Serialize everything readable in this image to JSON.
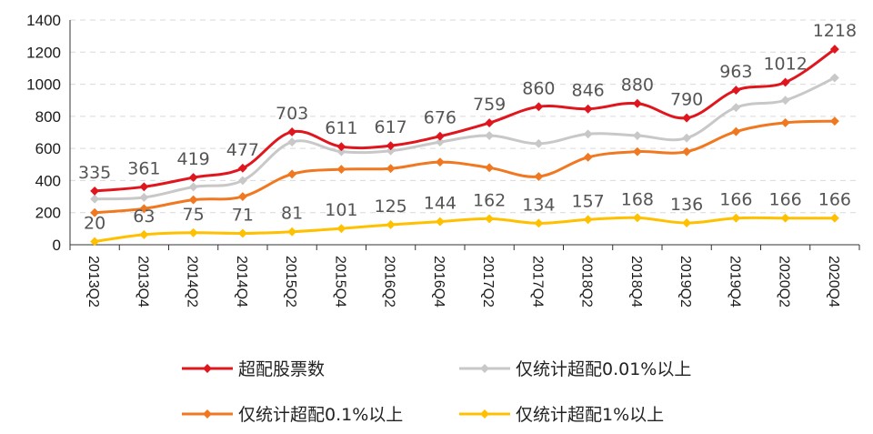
{
  "chart_data": {
    "type": "line",
    "categories": [
      "2013Q2",
      "2013Q4",
      "2014Q2",
      "2014Q4",
      "2015Q2",
      "2015Q4",
      "2016Q2",
      "2016Q4",
      "2017Q2",
      "2017Q4",
      "2018Q2",
      "2018Q4",
      "2019Q2",
      "2019Q4",
      "2020Q2",
      "2020Q4"
    ],
    "ylim": [
      0,
      1400
    ],
    "yticks": [
      0,
      200,
      400,
      600,
      800,
      1000,
      1200,
      1400
    ],
    "grid": "horizontal-dashed",
    "legend_position": "bottom",
    "series": [
      {
        "name": "超配股票数",
        "color": "#E0161E",
        "values": [
          335,
          361,
          419,
          477,
          703,
          611,
          617,
          676,
          759,
          860,
          846,
          880,
          790,
          963,
          1012,
          1218
        ],
        "labels": [
          "335",
          "361",
          "419",
          "477",
          "703",
          "611",
          "617",
          "676",
          "759",
          "860",
          "846",
          "880",
          "790",
          "963",
          "1012",
          "1218"
        ]
      },
      {
        "name": "仅统计超配0.01%以上",
        "color": "#C8C8C8",
        "values": [
          285,
          295,
          360,
          400,
          640,
          580,
          585,
          640,
          680,
          630,
          690,
          680,
          665,
          855,
          900,
          1040
        ]
      },
      {
        "name": "仅统计超配0.1%以上",
        "color": "#F07820",
        "values": [
          200,
          225,
          280,
          300,
          440,
          470,
          475,
          515,
          480,
          425,
          545,
          580,
          580,
          705,
          760,
          770
        ]
      },
      {
        "name": "仅统计超配1%以上",
        "color": "#FFC000",
        "values": [
          20,
          63,
          75,
          71,
          81,
          101,
          125,
          144,
          162,
          134,
          157,
          168,
          136,
          166,
          166,
          166
        ],
        "labels": [
          "20",
          "63",
          "75",
          "71",
          "81",
          "101",
          "125",
          "144",
          "162",
          "134",
          "157",
          "168",
          "136",
          "166",
          "166",
          "166"
        ]
      }
    ]
  }
}
